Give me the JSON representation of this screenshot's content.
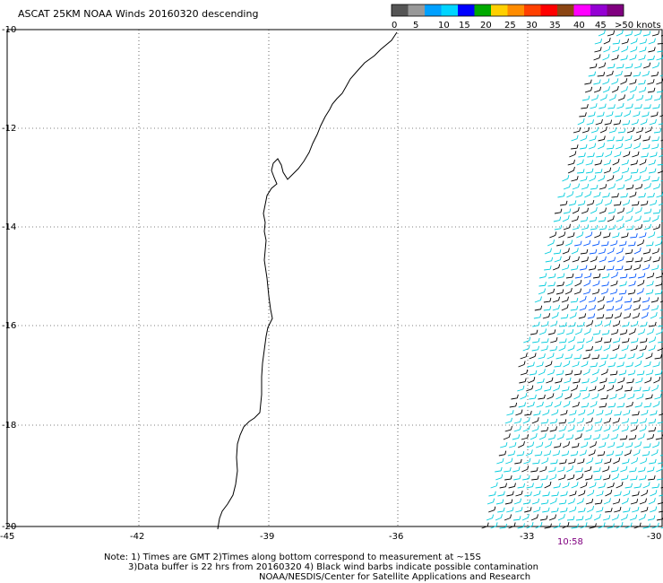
{
  "title": "ASCAT 25KM NOAA Winds 20160320 descending",
  "legend": {
    "colors": [
      "#555555",
      "#999999",
      "#00a0ff",
      "#00d4ff",
      "#0000ff",
      "#00aa00",
      "#ffd000",
      "#ff8c00",
      "#ff4000",
      "#ff0000",
      "#8b4513",
      "#ff00ff",
      "#9400d3",
      "#800080"
    ],
    "labels": [
      "0",
      "5",
      "10",
      "15",
      "20",
      "25",
      "30",
      "35",
      "40",
      "45",
      ">50 knots"
    ]
  },
  "axes": {
    "y_labels": [
      "-10",
      "-12",
      "-14",
      "-16",
      "-18",
      "-20"
    ],
    "x_labels": [
      "-45",
      "-42",
      "-39",
      "-36",
      "-33",
      "-30"
    ]
  },
  "pass_time": "10:58",
  "notes": {
    "line1": "Note: 1) Times are GMT 2)Times along bottom correspond to measurement at ~15S",
    "line2": "3)Data buffer is 22 hrs from 20160320 4) Black wind barbs indicate possible contamination",
    "line3": "NOAA/NESDIS/Center for Satellite Applications and Research"
  },
  "wind_colors": {
    "contaminated": "#000000",
    "light": "#00ccdd",
    "moderate": "#0055ff",
    "strong": "#3333cc",
    "accent": "#00aa00"
  }
}
